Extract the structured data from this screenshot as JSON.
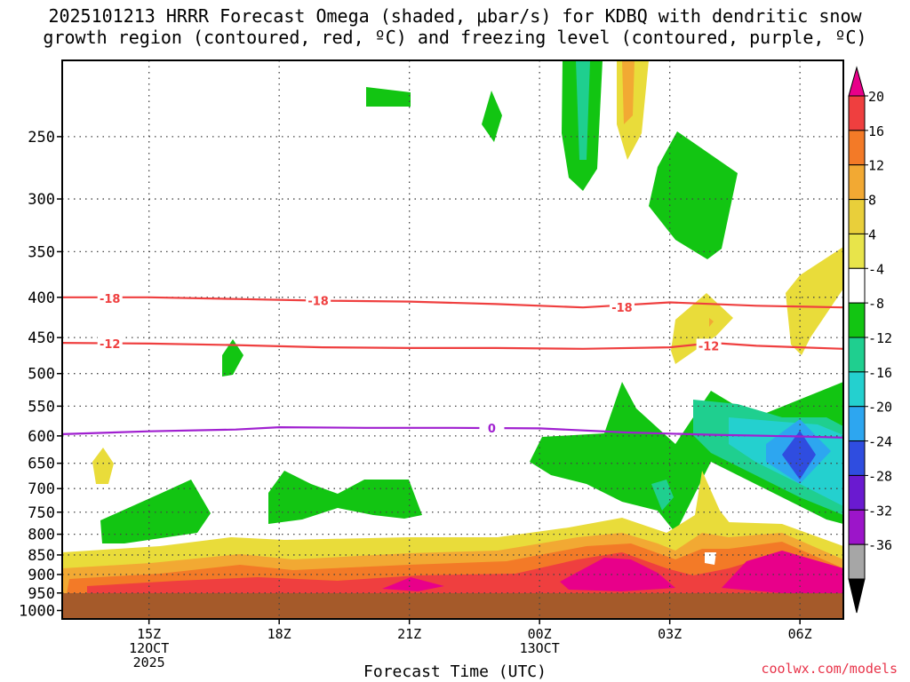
{
  "header": {
    "title_line1": "2025101213 HRRR Forecast Omega (shaded, μbar/s) for KDBQ with dendritic snow",
    "title_line2": "growth region (contoured, red, ºC) and freezing level (contoured, purple, ºC)"
  },
  "credit": "coolwx.com/models",
  "chart_data": {
    "type": "heatmap",
    "title": "2025101213 HRRR Forecast Omega (shaded, μbar/s) for KDBQ with dendritic snow growth region (contoured, red, ºC) and freezing level (contoured, purple, ºC)",
    "xlabel": "Forecast Time (UTC)",
    "ylabel": "",
    "x_ticks": [
      {
        "hour": 15,
        "label": "15Z",
        "sublabel": "12OCT",
        "sublabel2": "2025"
      },
      {
        "hour": 18,
        "label": "18Z",
        "sublabel": "",
        "sublabel2": ""
      },
      {
        "hour": 21,
        "label": "21Z",
        "sublabel": "",
        "sublabel2": ""
      },
      {
        "hour": 24,
        "label": "00Z",
        "sublabel": "13OCT",
        "sublabel2": ""
      },
      {
        "hour": 27,
        "label": "03Z",
        "sublabel": "",
        "sublabel2": ""
      },
      {
        "hour": 30,
        "label": "06Z",
        "sublabel": "",
        "sublabel2": ""
      }
    ],
    "xlim_hours": [
      13,
      31
    ],
    "y_pressure_levels": [
      250,
      300,
      350,
      400,
      450,
      500,
      550,
      600,
      650,
      700,
      750,
      800,
      850,
      900,
      950,
      1000
    ],
    "ylim_hpa": [
      200,
      1025
    ],
    "y_scale": "log-pressure",
    "grid": true,
    "colorbar": {
      "labels": [
        "20",
        "16",
        "12",
        "8",
        "4",
        "-4",
        "-8",
        "-12",
        "-16",
        "-20",
        "-24",
        "-28",
        "-32",
        "-36"
      ],
      "colors": [
        "#e8008a",
        "#ef3f3f",
        "#f37a27",
        "#f2a933",
        "#e9cf3a",
        "#e8e44a",
        "#ffffff",
        "#12c512",
        "#1fcf8f",
        "#24d0cf",
        "#2da6f0",
        "#2f4de0",
        "#6a1ad0",
        "#9c15c9",
        "#a6a6a6",
        "#000000"
      ]
    },
    "contours": [
      {
        "label": "-18",
        "color": "#ef3f3f",
        "points": [
          [
            13,
            400
          ],
          [
            15,
            400
          ],
          [
            17,
            402
          ],
          [
            19,
            404
          ],
          [
            21,
            405
          ],
          [
            23,
            408
          ],
          [
            25,
            412
          ],
          [
            27,
            406
          ],
          [
            29,
            410
          ],
          [
            31,
            412
          ]
        ]
      },
      {
        "label": "-12",
        "color": "#ef3f3f",
        "points": [
          [
            13,
            457
          ],
          [
            15,
            458
          ],
          [
            17,
            460
          ],
          [
            19,
            463
          ],
          [
            21,
            464
          ],
          [
            23,
            464
          ],
          [
            25,
            465
          ],
          [
            27,
            463
          ],
          [
            28,
            457
          ],
          [
            29,
            461
          ],
          [
            31,
            465
          ]
        ]
      },
      {
        "label": "0",
        "color": "#a020d0",
        "points": [
          [
            13,
            597
          ],
          [
            15,
            592
          ],
          [
            17,
            589
          ],
          [
            18,
            585
          ],
          [
            20,
            586
          ],
          [
            22,
            586
          ],
          [
            24,
            587
          ],
          [
            26,
            594
          ],
          [
            28,
            598
          ],
          [
            30,
            601
          ],
          [
            31,
            603
          ]
        ]
      }
    ],
    "contour_labels": [
      {
        "text": "-18",
        "hour": 14.1,
        "p": 401
      },
      {
        "text": "-18",
        "hour": 18.9,
        "p": 404
      },
      {
        "text": "-18",
        "hour": 25.9,
        "p": 412
      },
      {
        "text": "-12",
        "hour": 14.1,
        "p": 458
      },
      {
        "text": "-12",
        "hour": 27.9,
        "p": 461
      },
      {
        "text": "0",
        "hour": 22.9,
        "p": 586
      }
    ],
    "terrain_color": "#a55a2a",
    "surface_hpa": 975
  }
}
